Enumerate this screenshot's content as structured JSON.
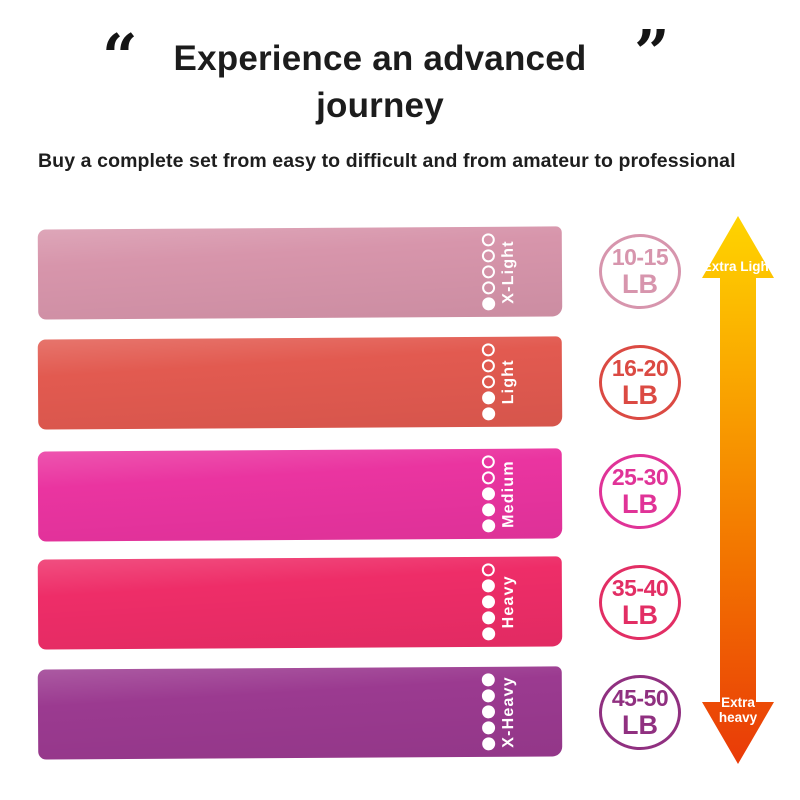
{
  "header": {
    "open_quote": "“",
    "close_quote": "”",
    "title_line1": "Experience an advanced",
    "title_line2": "journey",
    "subtitle": "Buy a complete set from easy to difficult and from amateur to professional"
  },
  "bands": [
    {
      "label": "X-Light",
      "color": "#d795ab",
      "filled_dots": 1,
      "total_dots": 5,
      "weight_range": "10-15",
      "weight_unit": "LB",
      "badge_color": "#d795ad"
    },
    {
      "label": "Light",
      "color": "#e25a50",
      "filled_dots": 2,
      "total_dots": 5,
      "weight_range": "16-20",
      "weight_unit": "LB",
      "badge_color": "#db4a43"
    },
    {
      "label": "Medium",
      "color": "#ea34a0",
      "filled_dots": 3,
      "total_dots": 5,
      "weight_range": "25-30",
      "weight_unit": "LB",
      "badge_color": "#e03397"
    },
    {
      "label": "Heavy",
      "color": "#ee2d68",
      "filled_dots": 4,
      "total_dots": 5,
      "weight_range": "35-40",
      "weight_unit": "LB",
      "badge_color": "#e22e64"
    },
    {
      "label": "X-Heavy",
      "color": "#9b3a90",
      "filled_dots": 5,
      "total_dots": 5,
      "weight_range": "45-50",
      "weight_unit": "LB",
      "badge_color": "#903080"
    }
  ],
  "arrow": {
    "top_label": "Extra Light",
    "bottom_label": "Extra heavy",
    "gradient": [
      "#ffd400",
      "#f9a300",
      "#f27200",
      "#e93a08"
    ]
  }
}
